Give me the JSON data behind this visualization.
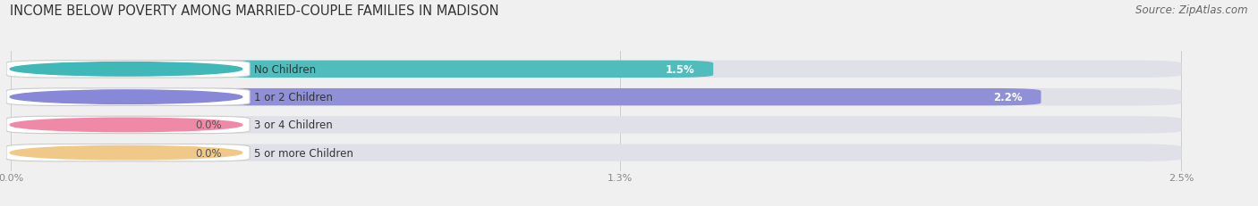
{
  "title": "INCOME BELOW POVERTY AMONG MARRIED-COUPLE FAMILIES IN MADISON",
  "source": "Source: ZipAtlas.com",
  "categories": [
    "No Children",
    "1 or 2 Children",
    "3 or 4 Children",
    "5 or more Children"
  ],
  "values": [
    1.5,
    2.2,
    0.0,
    0.0
  ],
  "bar_colors": [
    "#40b8b8",
    "#8888d8",
    "#f088a8",
    "#f0c888"
  ],
  "bg_color": "#f0f0f0",
  "bar_bg_color": "#e0e0e8",
  "xlim_max": 2.5,
  "xticks": [
    0.0,
    1.3,
    2.5
  ],
  "xtick_labels": [
    "0.0%",
    "1.3%",
    "2.5%"
  ],
  "title_fontsize": 10.5,
  "bar_height": 0.62,
  "val_label_fontsize": 8.5,
  "cat_label_fontsize": 8.5,
  "source_fontsize": 8.5
}
